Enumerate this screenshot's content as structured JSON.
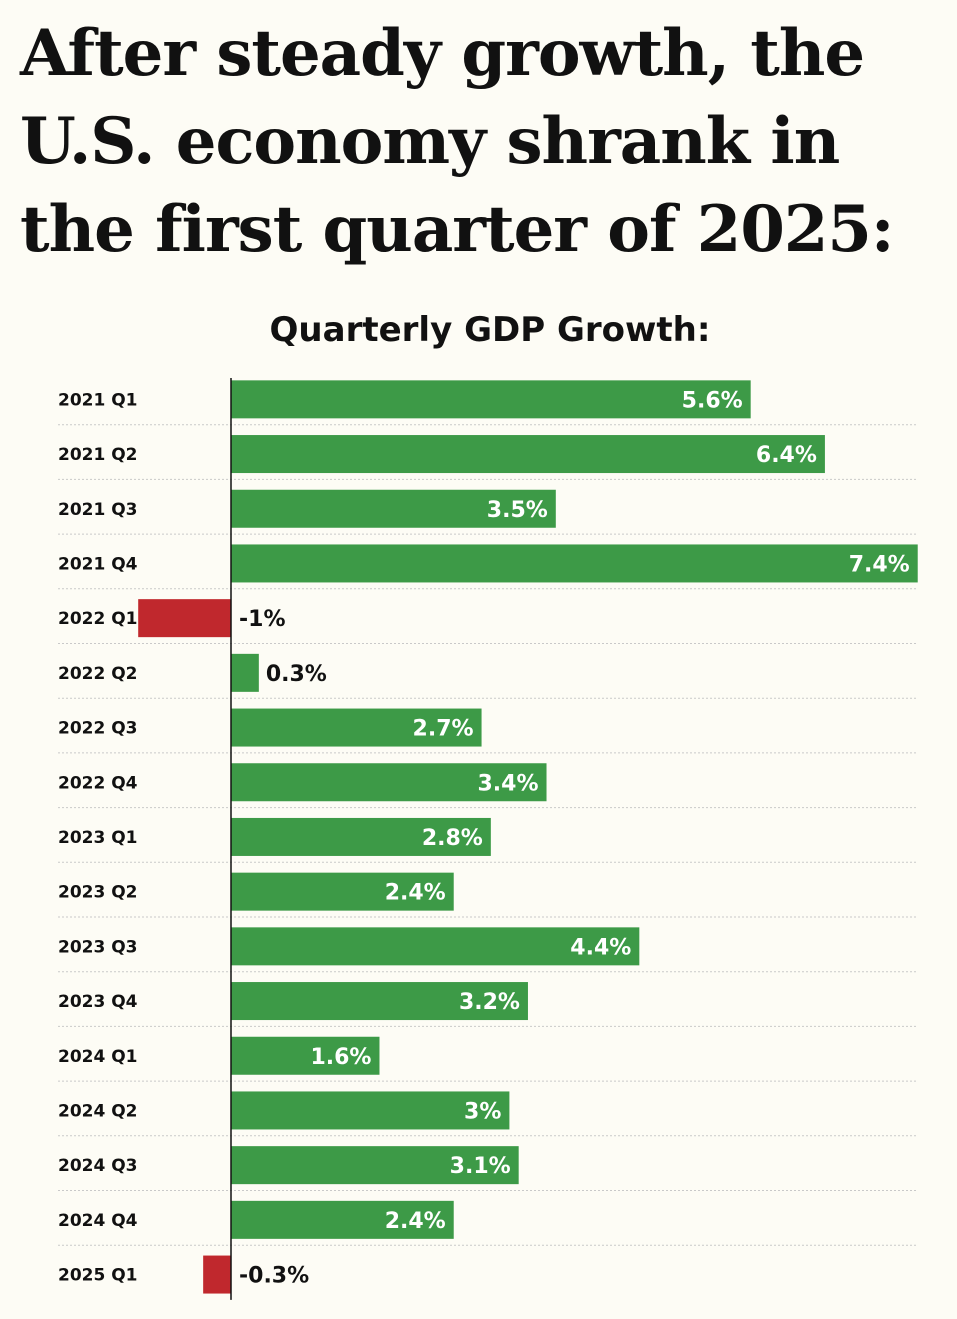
{
  "headline": {
    "lines": [
      "After steady growth, the",
      "U.S. economy shrank in",
      "the first quarter of 2025:"
    ]
  },
  "colors": {
    "positive": "#3d9a47",
    "negative": "#c0282d",
    "background": "#fdfcf5",
    "text": "#111111"
  },
  "chart_data": {
    "type": "bar",
    "orientation": "horizontal",
    "title": "Quarterly GDP Growth:",
    "categories": [
      "2021 Q1",
      "2021 Q2",
      "2021 Q3",
      "2021 Q4",
      "2022 Q1",
      "2022 Q2",
      "2022 Q3",
      "2022 Q4",
      "2023 Q1",
      "2023 Q2",
      "2023 Q3",
      "2023 Q4",
      "2024 Q1",
      "2024 Q2",
      "2024 Q3",
      "2024 Q4",
      "2025 Q1"
    ],
    "values": [
      5.6,
      6.4,
      3.5,
      7.4,
      -1,
      0.3,
      2.7,
      3.4,
      2.8,
      2.4,
      4.4,
      3.2,
      1.6,
      3,
      3.1,
      2.4,
      -0.3
    ],
    "value_labels": [
      "5.6%",
      "6.4%",
      "3.5%",
      "7.4%",
      "-1%",
      "0.3%",
      "2.7%",
      "3.4%",
      "2.8%",
      "2.4%",
      "4.4%",
      "3.2%",
      "1.6%",
      "3%",
      "3.1%",
      "2.4%",
      "-0.3%"
    ],
    "xlim": [
      -1,
      7.4
    ],
    "grid": "horizontal dotted row separators",
    "legend": "none"
  }
}
